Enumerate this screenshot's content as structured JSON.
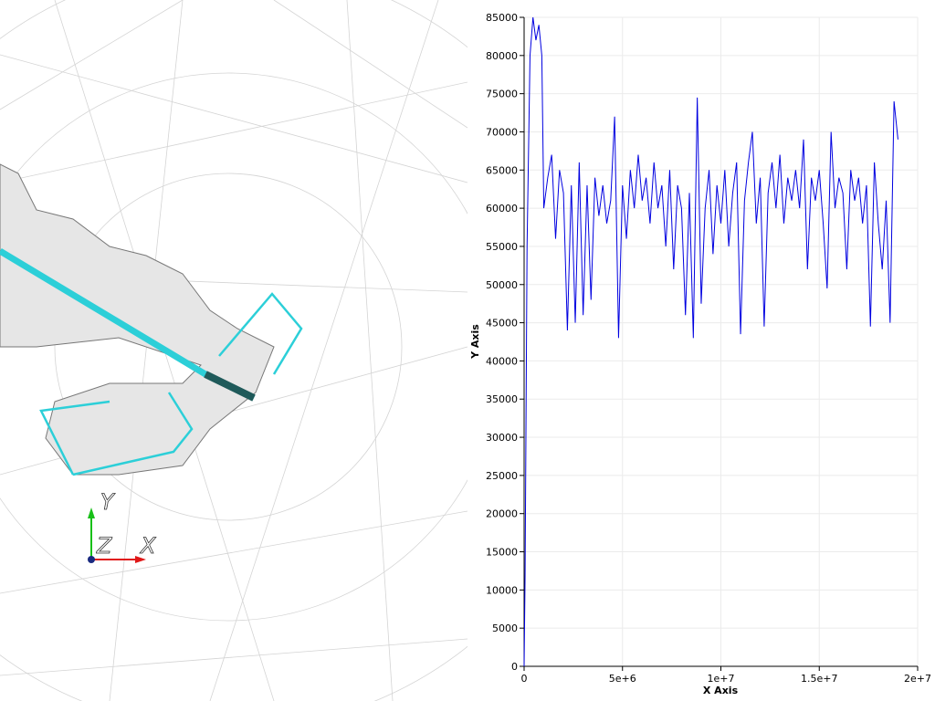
{
  "orientation_axes": {
    "x": "X",
    "y": "Y",
    "z": "Z"
  },
  "chart_data": {
    "type": "line",
    "x_label": "X Axis",
    "y_label": "Y Axis",
    "xlim": [
      0,
      20000000
    ],
    "ylim": [
      0,
      85000
    ],
    "xticks": [
      0,
      {
        "value": 5000000,
        "label": "5e+6"
      },
      {
        "value": 10000000,
        "label": "1e+7"
      },
      {
        "value": 15000000,
        "label": "1.5e+7"
      },
      {
        "value": 20000000,
        "label": "2e+7"
      }
    ],
    "yticks": [
      0,
      5000,
      10000,
      15000,
      20000,
      25000,
      30000,
      35000,
      40000,
      45000,
      50000,
      55000,
      60000,
      65000,
      70000,
      75000,
      80000,
      85000
    ],
    "grid": true,
    "series": [
      {
        "color": "#0000e0",
        "x": [
          0,
          50000,
          150000,
          300000,
          450000,
          600000,
          750000,
          900000,
          1000000,
          1200000,
          1400000,
          1600000,
          1800000,
          2000000,
          2200000,
          2400000,
          2600000,
          2800000,
          3000000,
          3200000,
          3400000,
          3600000,
          3800000,
          4000000,
          4200000,
          4400000,
          4600000,
          4800000,
          5000000,
          5200000,
          5400000,
          5600000,
          5800000,
          6000000,
          6200000,
          6400000,
          6600000,
          6800000,
          7000000,
          7200000,
          7400000,
          7600000,
          7800000,
          8000000,
          8200000,
          8400000,
          8600000,
          8800000,
          9000000,
          9200000,
          9400000,
          9600000,
          9800000,
          10000000,
          10200000,
          10400000,
          10600000,
          10800000,
          11000000,
          11200000,
          11400000,
          11600000,
          11800000,
          12000000,
          12200000,
          12400000,
          12600000,
          12800000,
          13000000,
          13200000,
          13400000,
          13600000,
          13800000,
          14000000,
          14200000,
          14400000,
          14600000,
          14800000,
          15000000,
          15200000,
          15400000,
          15600000,
          15800000,
          16000000,
          16200000,
          16400000,
          16600000,
          16800000,
          17000000,
          17200000,
          17400000,
          17600000,
          17800000,
          18000000,
          18200000,
          18400000,
          18600000,
          18800000,
          19000000
        ],
        "values": [
          0,
          12000,
          55000,
          80000,
          85000,
          82000,
          84000,
          80000,
          60000,
          64000,
          67000,
          56000,
          65000,
          62000,
          44000,
          63000,
          45000,
          66000,
          46000,
          63000,
          48000,
          64000,
          59000,
          63000,
          58000,
          61000,
          72000,
          43000,
          63000,
          56000,
          65000,
          60000,
          67000,
          61000,
          64000,
          58000,
          66000,
          60000,
          63000,
          55000,
          65000,
          52000,
          63000,
          60000,
          46000,
          62000,
          43000,
          74500,
          47500,
          60000,
          65000,
          54000,
          63000,
          58000,
          65000,
          55000,
          62000,
          66000,
          43500,
          61000,
          66000,
          70000,
          58000,
          64000,
          44500,
          62000,
          66000,
          60000,
          67000,
          58000,
          64000,
          61000,
          65000,
          60000,
          69000,
          52000,
          64000,
          61000,
          65000,
          58000,
          49500,
          70000,
          60000,
          64000,
          62000,
          52000,
          65000,
          61000,
          64000,
          58000,
          63000,
          44500,
          66000,
          58000,
          52000,
          61000,
          45000,
          74000,
          69000
        ]
      }
    ]
  }
}
